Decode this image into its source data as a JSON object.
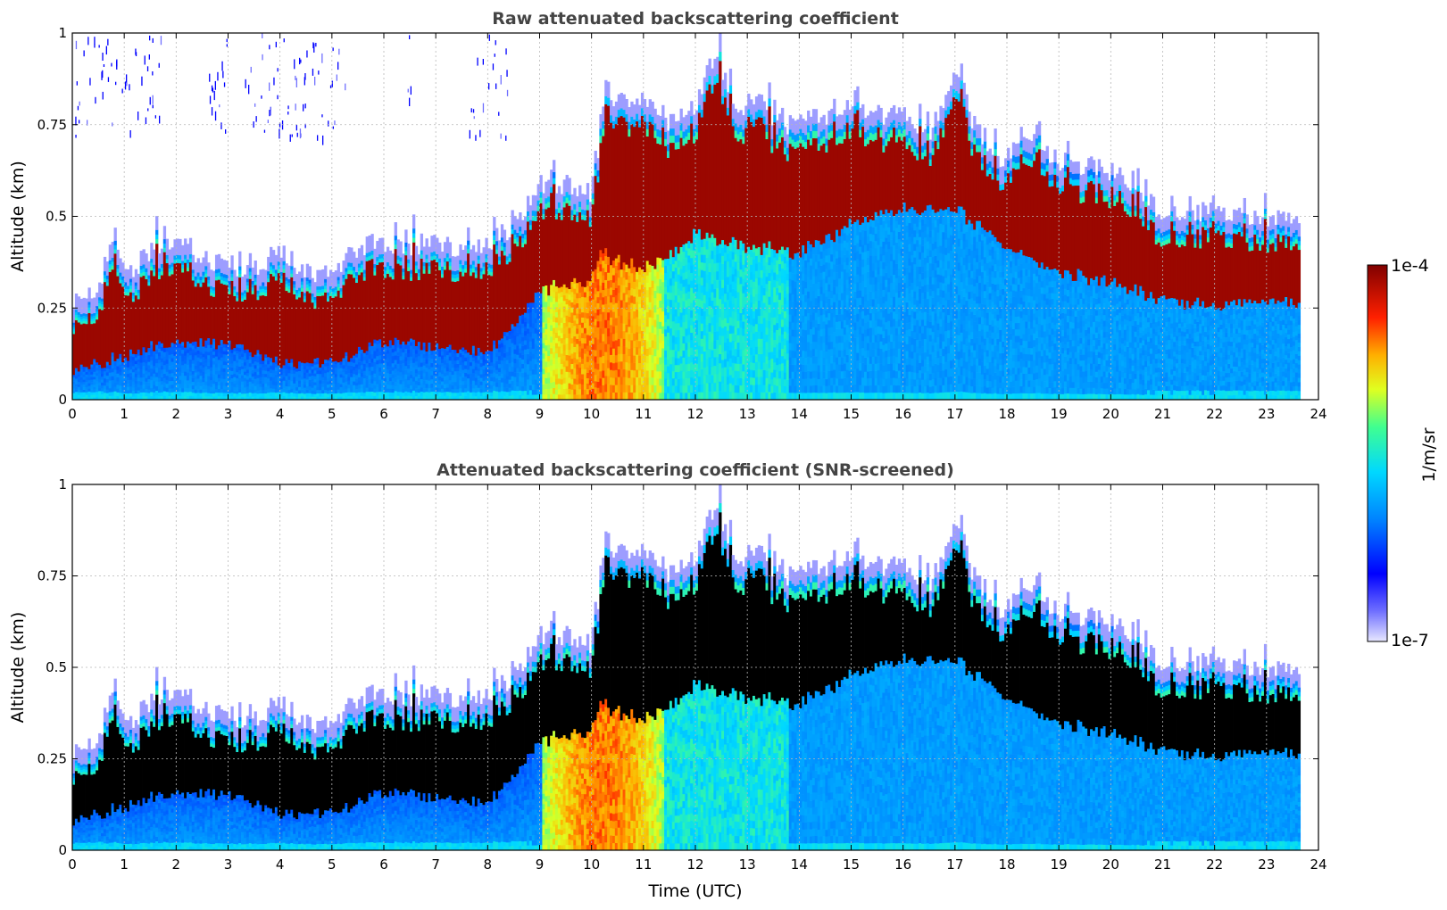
{
  "colors": {
    "colormap": [
      "#e8e8ff",
      "#0000ff",
      "#0080ff",
      "#00d8ff",
      "#40ff90",
      "#e0ff20",
      "#ffb000",
      "#ff2000",
      "#800000"
    ],
    "screened_saturation": "#000000",
    "title_color": "#444444"
  },
  "chart_data": [
    {
      "type": "heatmap",
      "title": "Raw attenuated backscattering coefficient",
      "xlabel": "",
      "ylabel": "Altitude (km)",
      "xlim": [
        0,
        24
      ],
      "ylim": [
        0,
        1
      ],
      "xticks": [
        "0",
        "1",
        "2",
        "3",
        "4",
        "5",
        "6",
        "7",
        "8",
        "9",
        "10",
        "11",
        "12",
        "13",
        "14",
        "15",
        "16",
        "17",
        "18",
        "19",
        "20",
        "21",
        "22",
        "23",
        "24"
      ],
      "yticks": [
        "0",
        "0.25",
        "0.5",
        "0.75",
        "1"
      ],
      "grid": true,
      "data_end_time": 23.65,
      "layer_top_km": {
        "time_utc": [
          0,
          0.5,
          0.8,
          1,
          1.5,
          2,
          2.5,
          3,
          3.5,
          4,
          4.5,
          5,
          5.5,
          6,
          6.5,
          7,
          7.5,
          8,
          8.5,
          9,
          9.5,
          10,
          10.3,
          10.6,
          11,
          11.5,
          12,
          12.4,
          12.8,
          13.2,
          13.6,
          14,
          14.5,
          15,
          15.5,
          16,
          16.5,
          17,
          17.4,
          17.8,
          18.2,
          18.6,
          19,
          19.5,
          20,
          20.5,
          21,
          21.5,
          22,
          22.5,
          23,
          23.65
        ],
        "altitude_km": [
          0.22,
          0.25,
          0.43,
          0.3,
          0.36,
          0.4,
          0.35,
          0.33,
          0.31,
          0.37,
          0.31,
          0.3,
          0.38,
          0.39,
          0.36,
          0.4,
          0.36,
          0.39,
          0.43,
          0.55,
          0.55,
          0.52,
          0.8,
          0.77,
          0.78,
          0.72,
          0.75,
          0.92,
          0.72,
          0.8,
          0.7,
          0.72,
          0.73,
          0.78,
          0.74,
          0.74,
          0.68,
          0.85,
          0.7,
          0.62,
          0.64,
          0.67,
          0.6,
          0.6,
          0.58,
          0.55,
          0.45,
          0.48,
          0.47,
          0.45,
          0.45,
          0.45
        ]
      },
      "layer_bottom_km": {
        "time_utc": [
          0,
          1,
          2,
          3,
          4,
          5,
          6,
          7,
          8,
          8.5,
          9,
          10,
          10.2,
          11,
          12,
          13,
          14,
          15,
          16,
          17,
          18,
          19,
          20,
          21,
          22,
          23,
          23.65
        ],
        "altitude_km": [
          0.08,
          0.12,
          0.16,
          0.15,
          0.1,
          0.1,
          0.16,
          0.14,
          0.13,
          0.2,
          0.3,
          0.33,
          0.4,
          0.35,
          0.45,
          0.42,
          0.4,
          0.48,
          0.52,
          0.52,
          0.42,
          0.35,
          0.32,
          0.27,
          0.26,
          0.27,
          0.27
        ]
      },
      "fog_columns_utc": [
        9.0,
        11.4
      ],
      "colorbar": {
        "min_label": "1e-7",
        "max_label": "1e-4",
        "label": "1/m/sr",
        "scale": "log"
      }
    },
    {
      "type": "heatmap",
      "title": "Attenuated backscattering coefficient (SNR-screened)",
      "xlabel": "Time (UTC)",
      "ylabel": "Altitude (km)",
      "xlim": [
        0,
        24
      ],
      "ylim": [
        0,
        1
      ],
      "xticks": [
        "0",
        "1",
        "2",
        "3",
        "4",
        "5",
        "6",
        "7",
        "8",
        "9",
        "10",
        "11",
        "12",
        "13",
        "14",
        "15",
        "16",
        "17",
        "18",
        "19",
        "20",
        "21",
        "22",
        "23",
        "24"
      ],
      "yticks": [
        "0",
        "0.25",
        "0.5",
        "0.75",
        "1"
      ],
      "grid": true,
      "data_end_time": 23.65,
      "saturated_region_color": "black"
    }
  ]
}
